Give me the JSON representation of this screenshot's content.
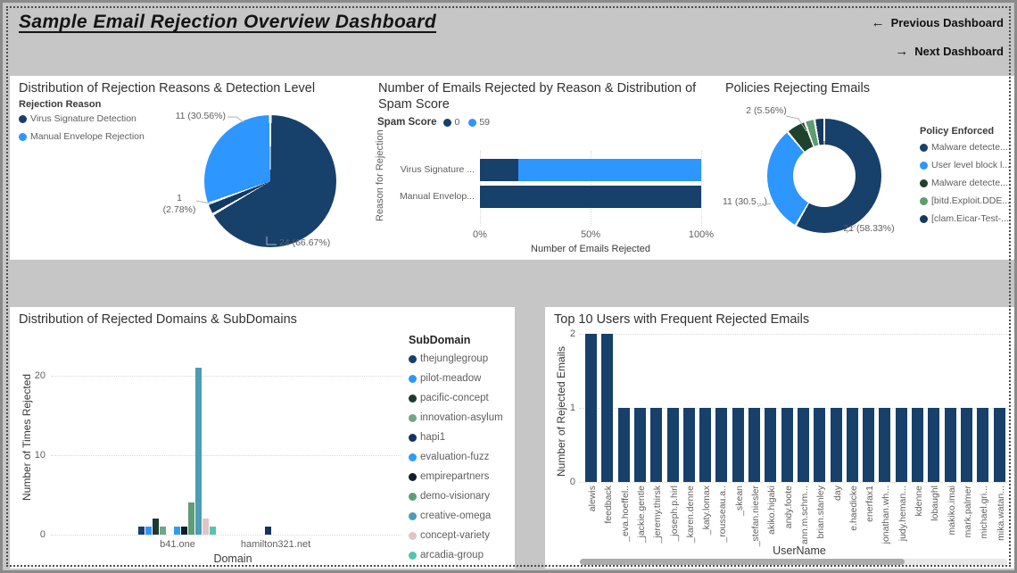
{
  "header": {
    "title": "Sample Email Rejection Overview Dashboard",
    "prev_arrow": "←",
    "prev_label": "Previous Dashboard",
    "next_arrow": "→",
    "next_label": "Next Dashboard"
  },
  "chart_data": [
    {
      "id": "rejection-reasons-pie",
      "type": "pie",
      "title": "Distribution of Rejection Reasons & Detection Level",
      "legend_title": "Rejection Reason",
      "legend_position": "left",
      "legend": [
        {
          "name": "Virus Signature Detection",
          "color": "#17406B"
        },
        {
          "name": "Manual Envelope Rejection",
          "color": "#2E96FF"
        }
      ],
      "slices": [
        {
          "label": "24 (66.67%)",
          "value": 24,
          "pct": 66.67,
          "color": "#17406B"
        },
        {
          "label": "1 (2.78%)",
          "value": 1,
          "pct": 2.78,
          "color": "#123A63"
        },
        {
          "label": "11 (30.56%)",
          "value": 11,
          "pct": 30.56,
          "color": "#2E96FF"
        }
      ]
    },
    {
      "id": "spam-score-stacked-bars",
      "type": "bar",
      "title": "Number of Emails Rejected by Reason & Distribution of Spam Score",
      "legend_title": "Spam Score",
      "legend": [
        {
          "name": "0",
          "color": "#17406B"
        },
        {
          "name": "59",
          "color": "#2E96FF"
        }
      ],
      "xlabel": "Number of Emails Rejected",
      "ylabel": "Reason for Rejection",
      "xticks": [
        "0%",
        "50%",
        "100%"
      ],
      "xlim": [
        0,
        100
      ],
      "rows": [
        {
          "category": "Virus Signature ...",
          "segments": [
            {
              "series": "0",
              "pct": 17.3,
              "color": "#17406B"
            },
            {
              "series": "59",
              "pct": 82.7,
              "color": "#2E96FF"
            }
          ]
        },
        {
          "category": "Manual Envelop...",
          "segments": [
            {
              "series": "0",
              "pct": 100,
              "color": "#17406B"
            }
          ]
        }
      ]
    },
    {
      "id": "policies-donut",
      "type": "pie",
      "title": "Policies Rejecting Emails",
      "legend_title": "Policy Enforced",
      "legend_position": "right",
      "legend": [
        {
          "name": "Malware detecte...",
          "color": "#17406B"
        },
        {
          "name": "User level block l...",
          "color": "#2E96FF"
        },
        {
          "name": "Malware detecte...",
          "color": "#21412F"
        },
        {
          "name": "[bitd.Exploit.DDE...",
          "color": "#5E9D6F"
        },
        {
          "name": "[clam.Eicar-Test-...",
          "color": "#16395F"
        }
      ],
      "slices": [
        {
          "label": "21 (58.33%)",
          "value": 21,
          "pct": 58.33,
          "color": "#17406B"
        },
        {
          "label": "11 (30.5...)",
          "value": 11,
          "pct": 30.56,
          "color": "#2E96FF"
        },
        {
          "label": "2 (5.56%)",
          "value": 2,
          "pct": 5.56,
          "color": "#21412F"
        },
        {
          "label": "",
          "value": 1,
          "pct": 2.78,
          "color": "#5E9D6F"
        },
        {
          "label": "",
          "value": 1,
          "pct": 2.78,
          "color": "#16395F"
        }
      ]
    },
    {
      "id": "domains-subdomains-bars",
      "type": "bar",
      "title": "Distribution of Rejected Domains & SubDomains",
      "xlabel": "Domain",
      "ylabel": "Number of Times Rejected",
      "yticks": [
        0,
        10,
        20
      ],
      "ylim": [
        0,
        22
      ],
      "legend_title": "SubDomain",
      "legend": [
        {
          "name": "thejunglegroup",
          "color": "#17406B"
        },
        {
          "name": "pilot-meadow",
          "color": "#2E96FF"
        },
        {
          "name": "pacific-concept",
          "color": "#1C3B2D"
        },
        {
          "name": "innovation-asylum",
          "color": "#71A687"
        },
        {
          "name": "hapi1",
          "color": "#14345E"
        },
        {
          "name": "evaluation-fuzz",
          "color": "#2F9BF2"
        },
        {
          "name": "empirepartners",
          "color": "#0F1E2B"
        },
        {
          "name": "demo-visionary",
          "color": "#5E9D77"
        },
        {
          "name": "creative-omega",
          "color": "#4C9DB5"
        },
        {
          "name": "concept-variety",
          "color": "#E2C4C8"
        },
        {
          "name": "arcadia-group",
          "color": "#52C4B2"
        }
      ],
      "domains": [
        {
          "name": "b41.one",
          "values": [
            1,
            1,
            2,
            1,
            0,
            1,
            1,
            4,
            21,
            2,
            1
          ]
        },
        {
          "name": "hamilton321.net",
          "values": [
            0,
            0,
            0,
            0,
            1,
            0,
            0,
            0,
            0,
            0,
            0
          ]
        }
      ]
    },
    {
      "id": "top-users-bars",
      "type": "bar",
      "title": "Top 10 Users with Frequent Rejected Emails",
      "xlabel": "UserName",
      "ylabel": "Number of Rejected Emails",
      "yticks": [
        0,
        1,
        2
      ],
      "ylim": [
        0,
        2
      ],
      "bar_color": "#17406B",
      "bars": [
        {
          "name": "alewis",
          "value": 2
        },
        {
          "name": "feedback",
          "value": 2
        },
        {
          "name": "_eva.hoeffel..",
          "value": 1
        },
        {
          "name": "_jackie.gentle",
          "value": 1
        },
        {
          "name": "_jeremy.thirsk",
          "value": 1
        },
        {
          "name": "_joseph.p.hirl",
          "value": 1
        },
        {
          "name": "_karen.denne",
          "value": 1
        },
        {
          "name": "_katy.lomax",
          "value": 1
        },
        {
          "name": "_rousseau.a..",
          "value": 1
        },
        {
          "name": "_skean",
          "value": 1
        },
        {
          "name": "_stefan.niesler",
          "value": 1
        },
        {
          "name": "akiko.higaki",
          "value": 1
        },
        {
          "name": "andy.foote",
          "value": 1
        },
        {
          "name": "ann.m.schm...",
          "value": 1
        },
        {
          "name": "brian.stanley",
          "value": 1
        },
        {
          "name": "day",
          "value": 1
        },
        {
          "name": "e.haedicke",
          "value": 1
        },
        {
          "name": "enerfax1",
          "value": 1
        },
        {
          "name": "jonathan.wh...",
          "value": 1
        },
        {
          "name": "judy.heman...",
          "value": 1
        },
        {
          "name": "kdenne",
          "value": 1
        },
        {
          "name": "lobaughl",
          "value": 1
        },
        {
          "name": "makiko.imai",
          "value": 1
        },
        {
          "name": "mark.palmer",
          "value": 1
        },
        {
          "name": "michael.gri...",
          "value": 1
        },
        {
          "name": "mika.watan...",
          "value": 1
        }
      ]
    }
  ]
}
